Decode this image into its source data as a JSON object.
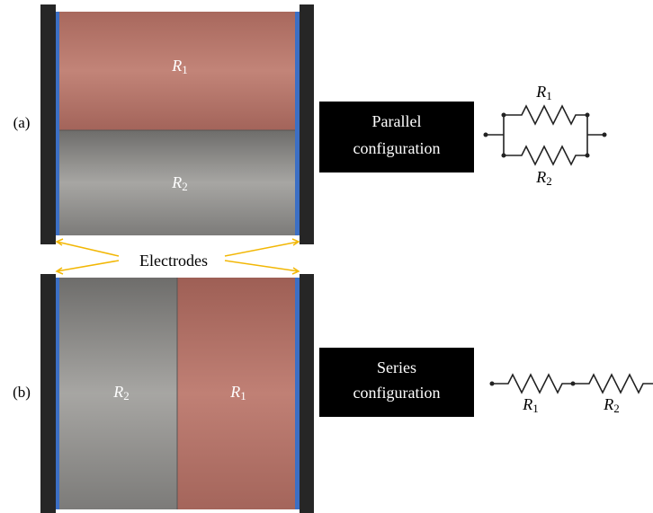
{
  "panels": [
    {
      "label": "(a)",
      "regions": [
        {
          "symbol": "R",
          "sub": "1"
        },
        {
          "symbol": "R",
          "sub": "2"
        }
      ],
      "box": [
        "Parallel",
        "configuration"
      ],
      "circuit": [
        {
          "symbol": "R",
          "sub": "1"
        },
        {
          "symbol": "R",
          "sub": "2"
        }
      ]
    },
    {
      "label": "(b)",
      "regions": [
        {
          "symbol": "R",
          "sub": "2"
        },
        {
          "symbol": "R",
          "sub": "1"
        }
      ],
      "box": [
        "Series",
        "configuration"
      ],
      "circuit": [
        {
          "symbol": "R",
          "sub": "1"
        },
        {
          "symbol": "R",
          "sub": "2"
        }
      ]
    }
  ],
  "electrodes_label": "Electrodes"
}
